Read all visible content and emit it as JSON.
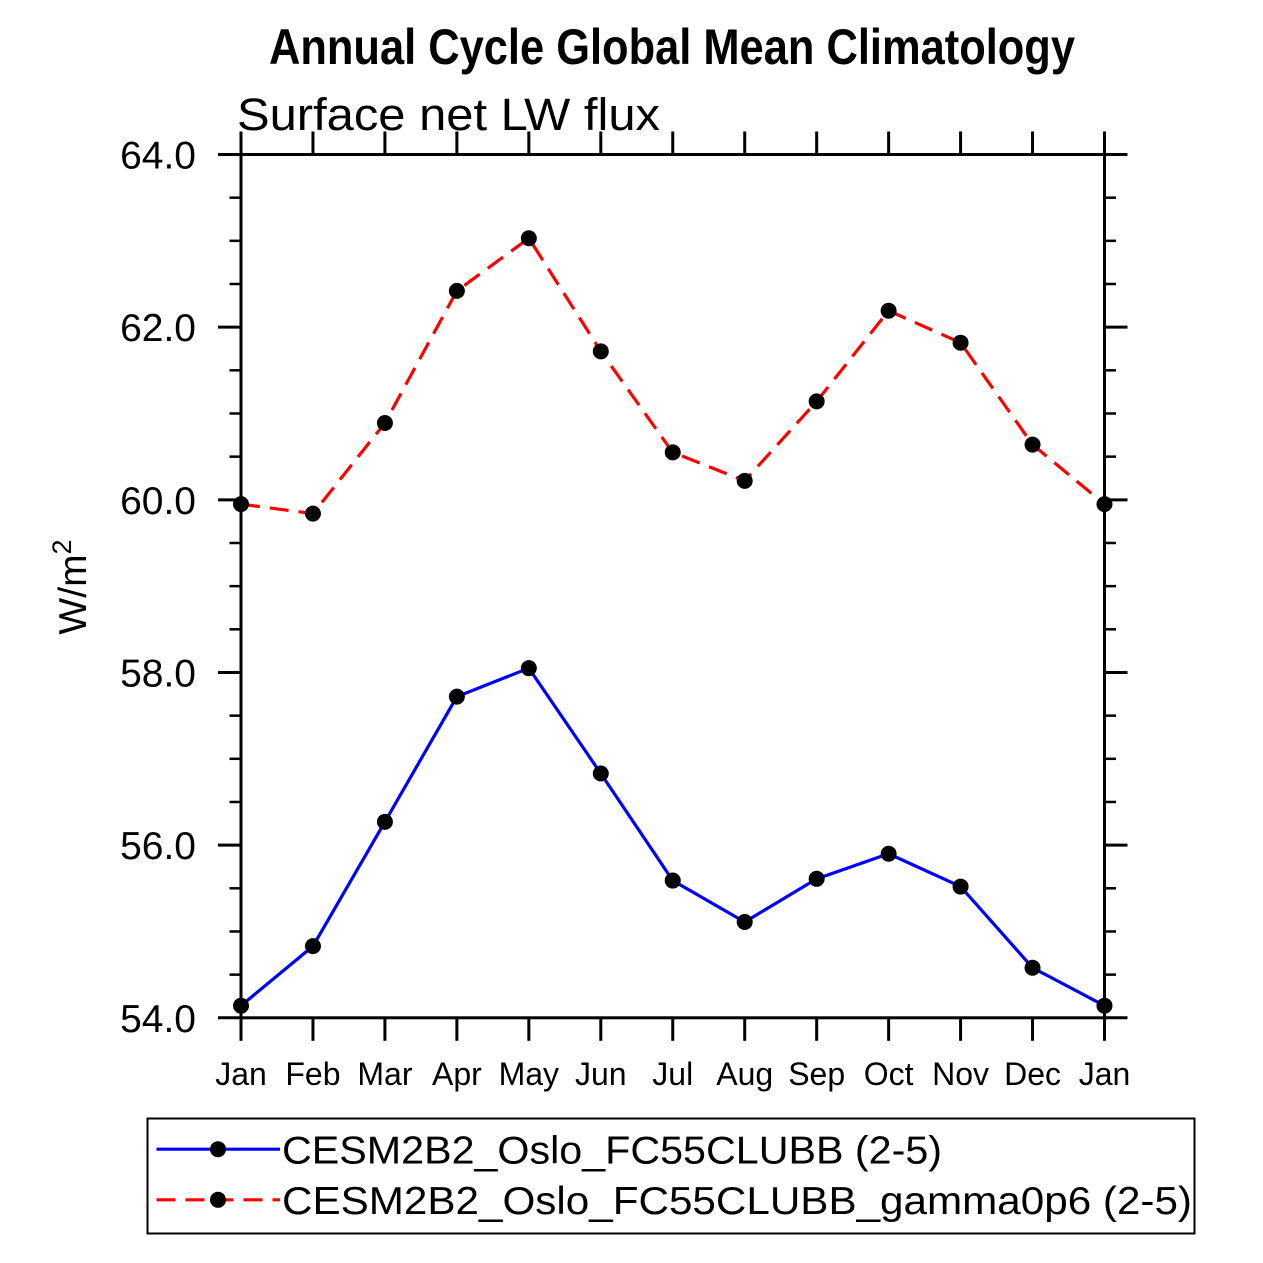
{
  "chart_data": {
    "type": "line",
    "title": "Annual Cycle Global Mean Climatology",
    "subtitle": "Surface net LW flux",
    "ylabel": "W/m²",
    "xlabel": "",
    "categories": [
      "Jan",
      "Feb",
      "Mar",
      "Apr",
      "May",
      "Jun",
      "Jul",
      "Aug",
      "Sep",
      "Oct",
      "Nov",
      "Dec",
      "Jan"
    ],
    "series": [
      {
        "name": "CESM2B2_Oslo_FC55CLUBB (2-5)",
        "line_color": "#0000ff",
        "line_style": "solid",
        "marker": "filled-circle",
        "marker_color": "#000000",
        "values": [
          54.14,
          54.83,
          56.27,
          57.72,
          58.05,
          56.83,
          55.59,
          55.11,
          55.61,
          55.9,
          55.52,
          54.58,
          54.14
        ]
      },
      {
        "name": "CESM2B2_Oslo_FC55CLUBB_gamma0p6 (2-5)",
        "line_color": "#ff0000",
        "line_style": "dashed",
        "marker": "filled-circle",
        "marker_color": "#000000",
        "values": [
          59.95,
          59.84,
          60.89,
          62.42,
          63.03,
          61.72,
          60.55,
          60.22,
          61.14,
          62.19,
          61.82,
          60.64,
          59.95
        ]
      }
    ],
    "ylim": [
      54.0,
      64.0
    ],
    "ytick_values": [
      54.0,
      56.0,
      58.0,
      60.0,
      62.0,
      64.0
    ],
    "ytick_labels": [
      "54.0",
      "56.0",
      "58.0",
      "60.0",
      "62.0",
      "64.0"
    ],
    "yminor_step": 0.5,
    "grid": "off",
    "legend_position": "bottom",
    "background_color": "#ffffff",
    "axis_color": "#000000",
    "text_color": "#000000"
  }
}
